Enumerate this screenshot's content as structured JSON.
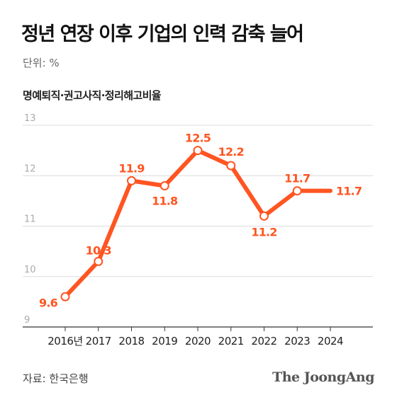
{
  "title": "정년 연장 이후 기업의 인력 감축 늘어",
  "unit_label": "단위: %",
  "source": "자료: 한국은행",
  "brand": "The JoongAng",
  "colors": {
    "line": "#ff5522",
    "marker_fill": "#ffffff",
    "grid": "#dcdcdc",
    "axis": "#333333",
    "ytick": "#aaaaaa",
    "xtick": "#222222"
  },
  "chart_data": {
    "type": "line",
    "series_label": "명예퇴직·권고사직·정리해고비율",
    "categories": [
      "2016년",
      "2017",
      "2018",
      "2019",
      "2020",
      "2021",
      "2022",
      "2023",
      "2024"
    ],
    "series": [
      {
        "values": [
          9.6,
          10.3,
          11.9,
          11.8,
          12.5,
          12.2,
          11.2,
          11.7,
          11.7
        ]
      }
    ],
    "data_labels": [
      "9.6",
      "10.3",
      "11.9",
      "11.8",
      "12.5",
      "12.2",
      "11.2",
      "11.7",
      "11.7"
    ],
    "yticks": [
      9,
      10,
      11,
      12,
      13
    ],
    "ylim": [
      9,
      13
    ],
    "grid": true,
    "markers": [
      true,
      true,
      true,
      true,
      true,
      true,
      true,
      true,
      false
    ]
  }
}
